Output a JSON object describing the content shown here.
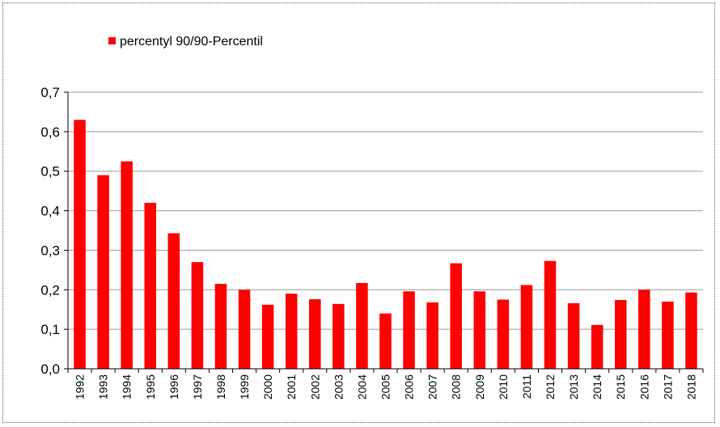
{
  "chart_data": {
    "type": "bar",
    "title": "",
    "xlabel": "",
    "ylabel": "",
    "ylim": [
      0,
      0.7
    ],
    "yticks": [
      "0,0",
      "0,1",
      "0,2",
      "0,3",
      "0,4",
      "0,5",
      "0,6",
      "0,7"
    ],
    "grid": true,
    "legend_position": "top-left",
    "categories": [
      "1992",
      "1993",
      "1994",
      "1995",
      "1996",
      "1997",
      "1998",
      "1999",
      "2000",
      "2001",
      "2002",
      "2003",
      "2004",
      "2005",
      "2006",
      "2007",
      "2008",
      "2009",
      "2010",
      "2011",
      "2012",
      "2013",
      "2014",
      "2015",
      "2016",
      "2017",
      "2018"
    ],
    "series": [
      {
        "name": "percentyl 90/90-Percentil",
        "color": "#ff0000",
        "values": [
          0.63,
          0.49,
          0.525,
          0.42,
          0.343,
          0.27,
          0.215,
          0.2,
          0.162,
          0.19,
          0.176,
          0.164,
          0.217,
          0.14,
          0.196,
          0.168,
          0.267,
          0.196,
          0.175,
          0.212,
          0.273,
          0.166,
          0.111,
          0.174,
          0.2,
          0.17,
          0.193
        ]
      }
    ]
  }
}
